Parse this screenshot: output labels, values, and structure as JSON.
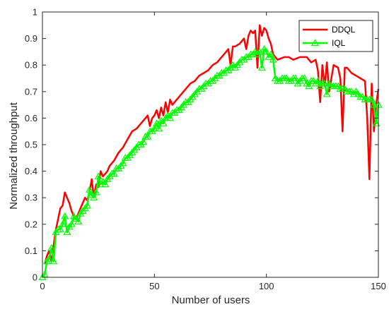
{
  "chart_data": {
    "type": "line",
    "title": "",
    "xlabel": "Number of users",
    "ylabel": "Normalized throughput",
    "xlim": [
      0,
      150
    ],
    "ylim": [
      0,
      1
    ],
    "xticks": [
      0,
      50,
      100,
      150
    ],
    "yticks": [
      0,
      0.1,
      0.2,
      0.3,
      0.4,
      0.5,
      0.6,
      0.7,
      0.8,
      0.9,
      1
    ],
    "grid": false,
    "legend_position": "top-right",
    "series": [
      {
        "name": "DDQL",
        "color": "#ff0000",
        "marker": "none",
        "x": [
          1,
          2,
          3,
          4,
          5,
          6,
          7,
          8,
          9,
          10,
          11,
          12,
          13,
          14,
          15,
          16,
          17,
          18,
          19,
          20,
          21,
          22,
          23,
          24,
          25,
          26,
          27,
          28,
          29,
          30,
          32,
          34,
          36,
          38,
          40,
          42,
          44,
          46,
          47,
          48,
          49,
          50,
          51,
          52,
          53,
          54,
          55,
          56,
          57,
          58,
          60,
          62,
          64,
          66,
          68,
          70,
          72,
          74,
          76,
          78,
          80,
          82,
          83,
          84,
          85,
          86,
          88,
          90,
          91,
          92,
          93,
          94,
          95,
          96,
          97,
          98,
          99,
          100,
          101,
          102,
          103,
          104,
          105,
          108,
          110,
          112,
          115,
          118,
          120,
          122,
          123,
          124,
          125,
          126,
          127,
          128,
          130,
          132,
          133,
          134,
          135,
          136,
          138,
          140,
          142,
          144,
          145,
          146,
          147,
          148,
          149,
          150
        ],
        "y": [
          0.05,
          0.08,
          0.1,
          0.06,
          0.12,
          0.18,
          0.22,
          0.26,
          0.27,
          0.32,
          0.3,
          0.28,
          0.25,
          0.23,
          0.22,
          0.24,
          0.26,
          0.28,
          0.3,
          0.29,
          0.32,
          0.37,
          0.3,
          0.35,
          0.34,
          0.4,
          0.38,
          0.39,
          0.4,
          0.42,
          0.44,
          0.47,
          0.49,
          0.52,
          0.55,
          0.56,
          0.58,
          0.6,
          0.61,
          0.57,
          0.6,
          0.61,
          0.63,
          0.6,
          0.64,
          0.61,
          0.66,
          0.62,
          0.67,
          0.65,
          0.67,
          0.69,
          0.71,
          0.73,
          0.74,
          0.76,
          0.77,
          0.78,
          0.8,
          0.81,
          0.83,
          0.85,
          0.86,
          0.8,
          0.87,
          0.87,
          0.88,
          0.9,
          0.86,
          0.91,
          0.93,
          0.92,
          0.93,
          0.79,
          0.95,
          0.91,
          0.94,
          0.93,
          0.9,
          0.88,
          0.84,
          0.83,
          0.82,
          0.83,
          0.83,
          0.82,
          0.83,
          0.83,
          0.81,
          0.82,
          0.78,
          0.66,
          0.8,
          0.72,
          0.81,
          0.7,
          0.8,
          0.79,
          0.75,
          0.55,
          0.79,
          0.79,
          0.77,
          0.76,
          0.75,
          0.74,
          0.6,
          0.37,
          0.73,
          0.55,
          0.65,
          0.71
        ]
      },
      {
        "name": "IQL",
        "color": "#00ff00",
        "marker": "triangle",
        "x": [
          0,
          1,
          2,
          3,
          4,
          5,
          6,
          7,
          8,
          9,
          10,
          11,
          12,
          13,
          14,
          15,
          16,
          17,
          18,
          19,
          20,
          21,
          22,
          23,
          24,
          25,
          26,
          27,
          28,
          29,
          30,
          31,
          32,
          33,
          34,
          35,
          36,
          37,
          38,
          39,
          40,
          41,
          42,
          43,
          44,
          45,
          46,
          47,
          48,
          49,
          50,
          51,
          52,
          53,
          54,
          55,
          56,
          57,
          58,
          59,
          60,
          61,
          62,
          63,
          64,
          65,
          66,
          67,
          68,
          69,
          70,
          71,
          72,
          73,
          74,
          75,
          76,
          77,
          78,
          79,
          80,
          81,
          82,
          83,
          84,
          85,
          86,
          87,
          88,
          89,
          90,
          91,
          92,
          93,
          94,
          95,
          96,
          97,
          98,
          99,
          100,
          101,
          102,
          103,
          104,
          105,
          106,
          107,
          108,
          109,
          110,
          111,
          112,
          113,
          114,
          115,
          116,
          117,
          118,
          119,
          120,
          121,
          122,
          123,
          124,
          125,
          126,
          127,
          128,
          129,
          130,
          131,
          132,
          133,
          134,
          135,
          136,
          137,
          138,
          139,
          140,
          141,
          142,
          143,
          144,
          145,
          146,
          147,
          148,
          149,
          150
        ],
        "y": [
          0.0,
          0.01,
          0.06,
          0.07,
          0.11,
          0.06,
          0.17,
          0.18,
          0.18,
          0.2,
          0.23,
          0.17,
          0.19,
          0.2,
          0.23,
          0.22,
          0.21,
          0.24,
          0.25,
          0.26,
          0.27,
          0.33,
          0.31,
          0.3,
          0.32,
          0.38,
          0.35,
          0.36,
          0.35,
          0.37,
          0.38,
          0.39,
          0.39,
          0.41,
          0.41,
          0.42,
          0.43,
          0.45,
          0.45,
          0.46,
          0.47,
          0.48,
          0.49,
          0.5,
          0.5,
          0.51,
          0.53,
          0.53,
          0.55,
          0.55,
          0.56,
          0.58,
          0.56,
          0.59,
          0.58,
          0.6,
          0.61,
          0.6,
          0.62,
          0.62,
          0.63,
          0.63,
          0.64,
          0.65,
          0.66,
          0.66,
          0.67,
          0.68,
          0.69,
          0.7,
          0.71,
          0.71,
          0.72,
          0.73,
          0.73,
          0.74,
          0.74,
          0.75,
          0.76,
          0.76,
          0.77,
          0.77,
          0.78,
          0.78,
          0.79,
          0.8,
          0.79,
          0.8,
          0.81,
          0.82,
          0.82,
          0.83,
          0.83,
          0.84,
          0.84,
          0.85,
          0.84,
          0.85,
          0.79,
          0.86,
          0.85,
          0.83,
          0.84,
          0.82,
          0.75,
          0.74,
          0.74,
          0.75,
          0.75,
          0.75,
          0.74,
          0.74,
          0.75,
          0.75,
          0.73,
          0.74,
          0.75,
          0.75,
          0.73,
          0.72,
          0.74,
          0.74,
          0.73,
          0.74,
          0.72,
          0.73,
          0.73,
          0.69,
          0.73,
          0.72,
          0.72,
          0.72,
          0.72,
          0.71,
          0.71,
          0.71,
          0.7,
          0.7,
          0.7,
          0.69,
          0.7,
          0.69,
          0.68,
          0.68,
          0.67,
          0.67,
          0.67,
          0.67,
          0.65,
          0.58,
          0.65
        ]
      }
    ]
  }
}
